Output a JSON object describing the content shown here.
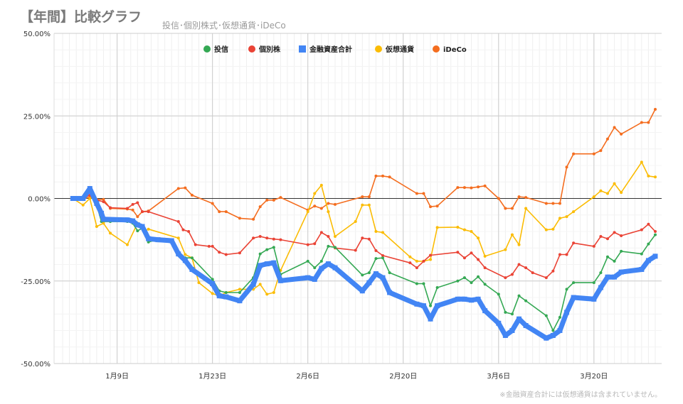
{
  "chart_data": {
    "type": "line",
    "title": "【年間】比較グラフ",
    "subtitle": "投信･個別株式･仮想通貨･iDeCo",
    "note": "※金融資産合計には仮想通貨は含まれていません。",
    "x_ticks": [
      {
        "label": "1月9日",
        "day": 8
      },
      {
        "label": "1月23日",
        "day": 22
      },
      {
        "label": "2月6日",
        "day": 36
      },
      {
        "label": "2月20日",
        "day": 50
      },
      {
        "label": "3月6日",
        "day": 64
      },
      {
        "label": "3月20日",
        "day": 78
      }
    ],
    "xlim": [
      0,
      87
    ],
    "ylim": [
      -50,
      50
    ],
    "y_ticks": [
      {
        "label": "50.00%",
        "value": 50
      },
      {
        "label": "25.00%",
        "value": 25
      },
      {
        "label": "0.00%",
        "value": 0
      },
      {
        "label": "-25.00%",
        "value": -25
      },
      {
        "label": "-50.00%",
        "value": -50
      }
    ],
    "grid": true,
    "legend_position": "top",
    "series": [
      {
        "name": "投信",
        "color": "#34a853",
        "points": [
          [
            1.5,
            0
          ],
          [
            3,
            0
          ],
          [
            4,
            2
          ],
          [
            5,
            -2
          ],
          [
            5.7,
            -7
          ],
          [
            7,
            -7
          ],
          [
            9.5,
            -7
          ],
          [
            10.3,
            -7.5
          ],
          [
            11,
            -9.8
          ],
          [
            11.7,
            -9
          ],
          [
            12.6,
            -13.2
          ],
          [
            14,
            -12.5
          ],
          [
            16,
            -12.8
          ],
          [
            17,
            -16.5
          ],
          [
            18,
            -18
          ],
          [
            19,
            -18
          ],
          [
            22,
            -24.5
          ],
          [
            23,
            -28
          ],
          [
            24,
            -28.5
          ],
          [
            26,
            -28.5
          ],
          [
            28,
            -24
          ],
          [
            29,
            -16.8
          ],
          [
            30,
            -15.5
          ],
          [
            31,
            -14.8
          ],
          [
            32,
            -23
          ],
          [
            36,
            -19
          ],
          [
            37,
            -21
          ],
          [
            38,
            -19
          ],
          [
            39,
            -14.5
          ],
          [
            40,
            -14.8
          ],
          [
            44,
            -23.2
          ],
          [
            45,
            -22.5
          ],
          [
            46,
            -18.2
          ],
          [
            47,
            -18
          ],
          [
            48,
            -22.5
          ],
          [
            52,
            -25.8
          ],
          [
            53,
            -25.8
          ],
          [
            54,
            -32.5
          ],
          [
            55,
            -27
          ],
          [
            58,
            -25
          ],
          [
            59,
            -24
          ],
          [
            60,
            -25.5
          ],
          [
            61,
            -23.7
          ],
          [
            62,
            -26
          ],
          [
            64,
            -29
          ],
          [
            65,
            -34.5
          ],
          [
            66,
            -35
          ],
          [
            67,
            -29.5
          ],
          [
            68,
            -31
          ],
          [
            71,
            -35.5
          ],
          [
            72,
            -40
          ],
          [
            73,
            -36
          ],
          [
            74,
            -27.5
          ],
          [
            75,
            -25.5
          ],
          [
            78,
            -25.5
          ],
          [
            79,
            -22.5
          ],
          [
            80,
            -17.7
          ],
          [
            81,
            -19
          ],
          [
            82,
            -16
          ],
          [
            85,
            -16.8
          ],
          [
            86,
            -13.8
          ],
          [
            87,
            -11
          ]
        ]
      },
      {
        "name": "個別株",
        "color": "#ea4335",
        "points": [
          [
            1.5,
            0
          ],
          [
            3,
            0
          ],
          [
            4,
            1
          ],
          [
            5,
            -0.5
          ],
          [
            6,
            -1
          ],
          [
            7,
            -2.8
          ],
          [
            9.5,
            -3
          ],
          [
            10.3,
            -1.8
          ],
          [
            11,
            -1.3
          ],
          [
            11.7,
            -4
          ],
          [
            12.6,
            -4
          ],
          [
            17,
            -7
          ],
          [
            17.7,
            -9.5
          ],
          [
            18.5,
            -10
          ],
          [
            19.5,
            -14
          ],
          [
            21.5,
            -14.5
          ],
          [
            22,
            -14.5
          ],
          [
            23,
            -16.3
          ],
          [
            24,
            -17
          ],
          [
            26,
            -16.5
          ],
          [
            28,
            -12
          ],
          [
            29,
            -11.5
          ],
          [
            30,
            -12
          ],
          [
            31,
            -12.3
          ],
          [
            32,
            -12.5
          ],
          [
            36,
            -14
          ],
          [
            37,
            -13.7
          ],
          [
            38,
            -10.3
          ],
          [
            39,
            -11.5
          ],
          [
            40,
            -15
          ],
          [
            43,
            -15.7
          ],
          [
            44,
            -12
          ],
          [
            45,
            -12.3
          ],
          [
            46,
            -15.8
          ],
          [
            47,
            -17.3
          ],
          [
            51,
            -19.5
          ],
          [
            52,
            -21
          ],
          [
            53,
            -19
          ],
          [
            54,
            -17.2
          ],
          [
            58,
            -16.3
          ],
          [
            59,
            -18
          ],
          [
            60,
            -16.5
          ],
          [
            61,
            -18.5
          ],
          [
            62,
            -21
          ],
          [
            65,
            -24
          ],
          [
            66,
            -23
          ],
          [
            67,
            -20
          ],
          [
            68,
            -21
          ],
          [
            69,
            -22.5
          ],
          [
            71,
            -24
          ],
          [
            72,
            -22
          ],
          [
            73,
            -17
          ],
          [
            74,
            -17
          ],
          [
            75,
            -13.5
          ],
          [
            78,
            -14.5
          ],
          [
            79,
            -11.5
          ],
          [
            80,
            -12.2
          ],
          [
            81,
            -10.3
          ],
          [
            82,
            -11.3
          ],
          [
            85,
            -9.5
          ],
          [
            86,
            -7.8
          ],
          [
            87,
            -10
          ]
        ]
      },
      {
        "name": "金融資産合計",
        "color": "#4285f4",
        "points": [
          [
            1.5,
            0
          ],
          [
            3,
            0
          ],
          [
            4,
            3
          ],
          [
            5,
            -1.5
          ],
          [
            5.7,
            -4.5
          ],
          [
            6,
            -6.3
          ],
          [
            9.5,
            -6.5
          ],
          [
            10.3,
            -6.8
          ],
          [
            11,
            -8
          ],
          [
            11.7,
            -8.5
          ],
          [
            12.6,
            -12.2
          ],
          [
            14,
            -12.5
          ],
          [
            16,
            -12.8
          ],
          [
            17,
            -16.8
          ],
          [
            18,
            -18.8
          ],
          [
            19,
            -21.5
          ],
          [
            22,
            -25.8
          ],
          [
            23,
            -29.5
          ],
          [
            24,
            -29.8
          ],
          [
            26,
            -31
          ],
          [
            28,
            -26
          ],
          [
            29,
            -20.3
          ],
          [
            30,
            -19.8
          ],
          [
            31,
            -19.5
          ],
          [
            32,
            -24.9
          ],
          [
            36,
            -24
          ],
          [
            37,
            -24.5
          ],
          [
            38,
            -21.2
          ],
          [
            39,
            -19.8
          ],
          [
            40,
            -21
          ],
          [
            44,
            -28
          ],
          [
            45,
            -25.5
          ],
          [
            46,
            -22.8
          ],
          [
            47,
            -24
          ],
          [
            48,
            -28.5
          ],
          [
            52,
            -32
          ],
          [
            53,
            -32.5
          ],
          [
            54,
            -36.5
          ],
          [
            55,
            -32.5
          ],
          [
            58,
            -30.5
          ],
          [
            59,
            -30.5
          ],
          [
            60,
            -30.8
          ],
          [
            61,
            -30.5
          ],
          [
            62,
            -34
          ],
          [
            64,
            -37.8
          ],
          [
            65,
            -41.5
          ],
          [
            66,
            -40
          ],
          [
            67,
            -36.5
          ],
          [
            68,
            -38.5
          ],
          [
            71,
            -42.3
          ],
          [
            72,
            -41.5
          ],
          [
            73,
            -40
          ],
          [
            74,
            -34.5
          ],
          [
            75,
            -30
          ],
          [
            78,
            -30.5
          ],
          [
            79,
            -27
          ],
          [
            80,
            -23.8
          ],
          [
            81,
            -23.8
          ],
          [
            82,
            -22.3
          ],
          [
            85,
            -21.5
          ],
          [
            86,
            -18.8
          ],
          [
            87,
            -17.5
          ]
        ]
      },
      {
        "name": "仮想通貨",
        "color": "#fbbc04",
        "points": [
          [
            1.5,
            0
          ],
          [
            3,
            -2
          ],
          [
            4,
            0
          ],
          [
            5,
            -8.5
          ],
          [
            6,
            -7.5
          ],
          [
            7,
            -10.5
          ],
          [
            9.5,
            -14
          ],
          [
            11,
            -7.5
          ],
          [
            12,
            -10
          ],
          [
            12.6,
            -9.3
          ],
          [
            17,
            -12
          ],
          [
            18,
            -17
          ],
          [
            19,
            -18
          ],
          [
            20,
            -25.5
          ],
          [
            22,
            -28.8
          ],
          [
            23,
            -29.5
          ],
          [
            24,
            -28.5
          ],
          [
            26,
            -27.5
          ],
          [
            28,
            -27.5
          ],
          [
            29,
            -26
          ],
          [
            30,
            -29
          ],
          [
            31,
            -28.5
          ],
          [
            32,
            -21.8
          ],
          [
            36,
            -4
          ],
          [
            37,
            1.5
          ],
          [
            38,
            4
          ],
          [
            39,
            -4
          ],
          [
            40,
            -11.5
          ],
          [
            43,
            -7
          ],
          [
            44,
            -2
          ],
          [
            45,
            -2
          ],
          [
            46,
            -10
          ],
          [
            47,
            -10.3
          ],
          [
            51,
            -17.7
          ],
          [
            52,
            -19
          ],
          [
            53,
            -19
          ],
          [
            54,
            -18.5
          ],
          [
            55,
            -8.8
          ],
          [
            58,
            -8.7
          ],
          [
            59,
            -9.5
          ],
          [
            60,
            -10
          ],
          [
            61,
            -12
          ],
          [
            62,
            -17.5
          ],
          [
            65,
            -15.5
          ],
          [
            66,
            -11
          ],
          [
            67,
            -14
          ],
          [
            68,
            -3
          ],
          [
            71,
            -9.5
          ],
          [
            72,
            -9.3
          ],
          [
            73,
            -6
          ],
          [
            74,
            -5.5
          ],
          [
            75,
            -4
          ],
          [
            78,
            0.5
          ],
          [
            79,
            2.3
          ],
          [
            80,
            1.5
          ],
          [
            81,
            4.5
          ],
          [
            82,
            1.8
          ],
          [
            85,
            11
          ],
          [
            86,
            6.8
          ],
          [
            87,
            6.5
          ]
        ]
      },
      {
        "name": "iDeCo",
        "color": "#f46d1f",
        "points": [
          [
            1.5,
            0
          ],
          [
            3,
            0
          ],
          [
            4,
            0.3
          ],
          [
            5,
            -0.3
          ],
          [
            6,
            -0.3
          ],
          [
            7,
            -3
          ],
          [
            9.5,
            -3.2
          ],
          [
            10.3,
            -3.5
          ],
          [
            11,
            -5.5
          ],
          [
            11.7,
            -4
          ],
          [
            12.6,
            -3.8
          ],
          [
            17,
            3
          ],
          [
            18,
            3.2
          ],
          [
            19,
            1
          ],
          [
            22,
            -1.5
          ],
          [
            23,
            -4
          ],
          [
            24,
            -4
          ],
          [
            26,
            -6
          ],
          [
            28,
            -6.3
          ],
          [
            29,
            -2.5
          ],
          [
            30,
            -0.5
          ],
          [
            31,
            -0.5
          ],
          [
            32,
            0.3
          ],
          [
            36,
            -3.5
          ],
          [
            37,
            -2.3
          ],
          [
            38,
            -3
          ],
          [
            39,
            -1.5
          ],
          [
            40,
            -1.8
          ],
          [
            44,
            0.5
          ],
          [
            45,
            0.5
          ],
          [
            46,
            6.8
          ],
          [
            47,
            6.8
          ],
          [
            48,
            6.5
          ],
          [
            52,
            1.5
          ],
          [
            53,
            1.5
          ],
          [
            54,
            -2.5
          ],
          [
            55,
            -2.3
          ],
          [
            58,
            3.3
          ],
          [
            59,
            3.3
          ],
          [
            60,
            3.2
          ],
          [
            61,
            3.5
          ],
          [
            62,
            3.8
          ],
          [
            64,
            0
          ],
          [
            65,
            -3
          ],
          [
            66,
            -3
          ],
          [
            67,
            0.5
          ],
          [
            68,
            0.3
          ],
          [
            71,
            -1.5
          ],
          [
            72,
            -1.5
          ],
          [
            73,
            -1.5
          ],
          [
            74,
            9.5
          ],
          [
            75,
            13.5
          ],
          [
            78,
            13.5
          ],
          [
            79,
            14.5
          ],
          [
            80,
            18
          ],
          [
            81,
            21.5
          ],
          [
            82,
            19.5
          ],
          [
            85,
            23
          ],
          [
            86,
            23
          ],
          [
            87,
            27
          ]
        ]
      }
    ]
  }
}
